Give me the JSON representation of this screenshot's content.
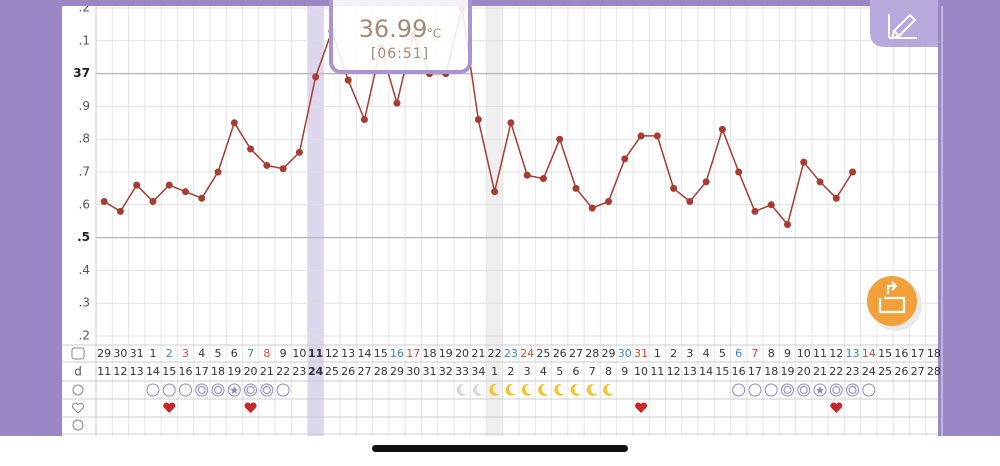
{
  "chart_data": {
    "type": "line",
    "categories": [
      "29",
      "30",
      "31",
      "1",
      "2",
      "3",
      "4",
      "5",
      "6",
      "7",
      "8",
      "9",
      "10",
      "11",
      "12",
      "13",
      "14",
      "15",
      "16",
      "17",
      "18",
      "19",
      "20",
      "21",
      "22",
      "23",
      "24",
      "25",
      "26",
      "27",
      "28",
      "29",
      "30",
      "31",
      "1",
      "2",
      "3",
      "4",
      "5",
      "6",
      "7",
      "8",
      "9",
      "10",
      "11",
      "12",
      "13",
      "14",
      "15",
      "16",
      "17",
      "18"
    ],
    "category_colors": [
      "#333",
      "#333",
      "#333",
      "#333",
      "#3b82c8",
      "#d9483b",
      "#333",
      "#333",
      "#333",
      "#3b82c8",
      "#d9483b",
      "#333",
      "#333",
      "#333",
      "#333",
      "#333",
      "#333",
      "#333",
      "#3b82c8",
      "#d9483b",
      "#333",
      "#333",
      "#333",
      "#333",
      "#333",
      "#3b82c8",
      "#d9483b",
      "#333",
      "#333",
      "#333",
      "#333",
      "#333",
      "#3b82c8",
      "#d9483b",
      "#333",
      "#333",
      "#333",
      "#333",
      "#333",
      "#3b82c8",
      "#d9483b",
      "#333",
      "#333",
      "#333",
      "#333",
      "#333",
      "#3b82c8",
      "#d9483b",
      "#333",
      "#333",
      "#333",
      "#333"
    ],
    "cycle_day_label": "d",
    "cycle_days": [
      "11",
      "12",
      "13",
      "14",
      "15",
      "16",
      "17",
      "18",
      "19",
      "20",
      "21",
      "22",
      "23",
      "24",
      "25",
      "26",
      "27",
      "28",
      "29",
      "30",
      "31",
      "32",
      "33",
      "34",
      "1",
      "2",
      "3",
      "4",
      "5",
      "6",
      "7",
      "8",
      "9",
      "10",
      "11",
      "12",
      "13",
      "14",
      "15",
      "16",
      "17",
      "18",
      "19",
      "20",
      "21",
      "22",
      "23",
      "24",
      "25",
      "26",
      "27",
      "28"
    ],
    "values": [
      36.61,
      36.58,
      36.66,
      36.61,
      36.66,
      36.64,
      36.62,
      36.7,
      36.85,
      36.77,
      36.72,
      36.71,
      36.76,
      36.99,
      37.13,
      36.98,
      36.86,
      37.08,
      36.91,
      37.12,
      37.0,
      37.0,
      37.2,
      36.86,
      36.64,
      36.85,
      36.69,
      36.68,
      36.8,
      36.65,
      36.59,
      36.61,
      36.74,
      36.81,
      36.81,
      36.65,
      36.61,
      36.67,
      36.83,
      36.7,
      36.58,
      36.6,
      36.54,
      36.73,
      36.67,
      36.62,
      36.7,
      null,
      null,
      null,
      null,
      null
    ],
    "color": "#a83b32",
    "ylim": [
      36.2,
      37.2
    ],
    "yticks": [
      {
        "value": 37.2,
        "label": ".2"
      },
      {
        "value": 37.1,
        "label": ".1"
      },
      37,
      {
        "value": 36.9,
        "label": ".9"
      },
      {
        "value": 36.8,
        "label": ".8"
      },
      {
        "value": 36.7,
        "label": ".7"
      },
      {
        "value": 36.6,
        "label": ".6"
      },
      {
        "value": 36.5,
        "label": ".5"
      },
      {
        "value": 36.4,
        "label": ".4"
      },
      {
        "value": 36.3,
        "label": ".3"
      },
      {
        "value": 36.2,
        "label": ".2"
      }
    ],
    "grid": true,
    "tooltip": {
      "value": "36.99",
      "unit": "°C",
      "time": "[06:51]"
    }
  }
}
